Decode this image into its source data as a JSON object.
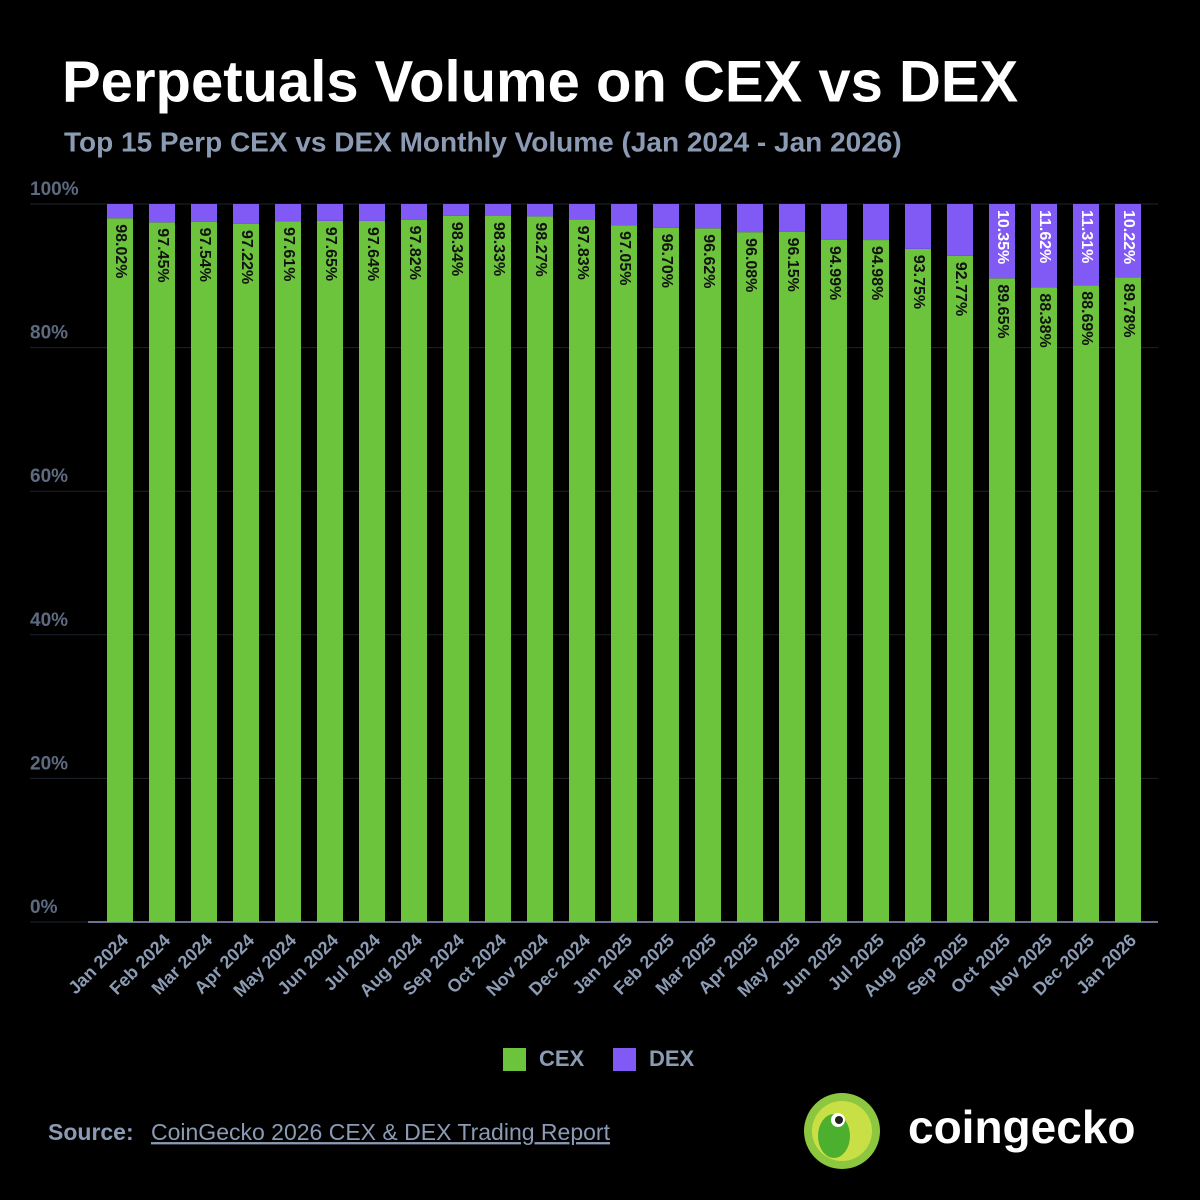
{
  "chart_data": {
    "type": "stacked_bar",
    "title": "Perpetuals Volume on CEX vs DEX",
    "subtitle": "Top 15 Perp CEX vs DEX Monthly Volume (Jan 2024 - Jan 2026)",
    "categories": [
      "Jan 2024",
      "Feb 2024",
      "Mar 2024",
      "Apr 2024",
      "May 2024",
      "Jun 2024",
      "Jul 2024",
      "Aug 2024",
      "Sep 2024",
      "Oct 2024",
      "Nov 2024",
      "Dec 2024",
      "Jan 2025",
      "Feb 2025",
      "Mar 2025",
      "Apr 2025",
      "May 2025",
      "Jun 2025",
      "Jul 2025",
      "Aug 2025",
      "Sep 2025",
      "Oct 2025",
      "Nov 2025",
      "Dec 2025",
      "Jan 2026"
    ],
    "series": [
      {
        "name": "CEX",
        "color": "#6cc43c",
        "values": [
          98.02,
          97.45,
          97.54,
          97.22,
          97.61,
          97.65,
          97.64,
          97.82,
          98.34,
          98.33,
          98.27,
          97.83,
          97.05,
          96.7,
          96.62,
          96.08,
          96.15,
          94.99,
          94.98,
          93.75,
          92.77,
          89.65,
          88.38,
          88.69,
          89.78
        ],
        "value_labels": [
          "98.02%",
          "97.45%",
          "97.54%",
          "97.22%",
          "97.61%",
          "97.65%",
          "97.64%",
          "97.82%",
          "98.34%",
          "98.33%",
          "98.27%",
          "97.83%",
          "97.05%",
          "96.70%",
          "96.62%",
          "96.08%",
          "96.15%",
          "94.99%",
          "94.98%",
          "93.75%",
          "92.77%",
          "89.65%",
          "88.38%",
          "88.69%",
          "89.78%"
        ]
      },
      {
        "name": "DEX",
        "color": "#8159f5",
        "values": [
          1.98,
          2.55,
          2.46,
          2.78,
          2.39,
          2.35,
          2.36,
          2.18,
          1.66,
          1.67,
          1.73,
          2.17,
          2.95,
          3.3,
          3.38,
          3.92,
          3.85,
          5.01,
          5.02,
          6.25,
          7.23,
          10.35,
          11.62,
          11.31,
          10.22
        ],
        "value_labels": [
          null,
          null,
          null,
          null,
          null,
          null,
          null,
          null,
          null,
          null,
          null,
          null,
          null,
          null,
          null,
          null,
          null,
          null,
          null,
          null,
          null,
          "10.35%",
          "11.62%",
          "11.31%",
          "10.22%"
        ]
      }
    ],
    "ylim": [
      0,
      100
    ],
    "yticks": [
      {
        "value": 0,
        "label": "0%"
      },
      {
        "value": 20,
        "label": "20%"
      },
      {
        "value": 40,
        "label": "40%"
      },
      {
        "value": 60,
        "label": "60%"
      },
      {
        "value": 80,
        "label": "80%"
      },
      {
        "value": 100,
        "label": "100%"
      }
    ],
    "grid": true,
    "legend": "bottom"
  },
  "source": {
    "label": "Source:",
    "link": "CoinGecko 2026 CEX & DEX Trading Report"
  },
  "brand": "coingecko"
}
